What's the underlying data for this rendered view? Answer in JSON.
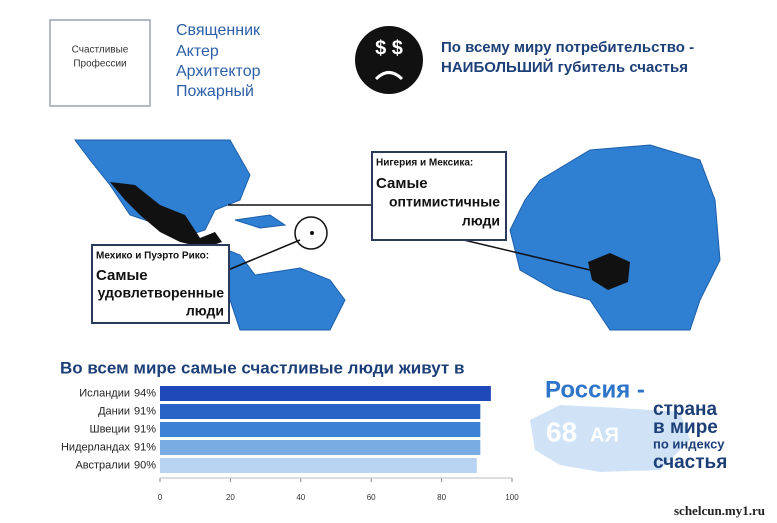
{
  "header": {
    "box_label": [
      "Счастливые",
      "Профессии"
    ],
    "professions": [
      "Священник",
      "Актер",
      "Архитектор",
      "Пожарный"
    ],
    "icon_text": "$ $",
    "consumerism": [
      "По всему миру потребительство -",
      "НАИБОЛЬШИЙ губитель счастья"
    ]
  },
  "map": {
    "callouts": [
      {
        "lead": "Мехико и Пуэрто Рико:",
        "lines": [
          "Самые",
          "удовлетворенные",
          "люди"
        ]
      },
      {
        "lead": "Нигерия и Мексика:",
        "lines": [
          "Самые",
          "оптимистичные",
          "люди"
        ]
      }
    ]
  },
  "chart_data": {
    "type": "hbar",
    "title": "Во всем мире самые счастливые люди живут в",
    "categories": [
      "Исландии",
      "Дании",
      "Швеции",
      "Нидерландах",
      "Австралии"
    ],
    "values": [
      94,
      91,
      91,
      91,
      90
    ],
    "value_labels": [
      "94%",
      "91%",
      "91%",
      "91%",
      "90%"
    ],
    "colors": [
      "#1f48b8",
      "#2a63c6",
      "#3d82d4",
      "#79ace3",
      "#b9d4f2"
    ],
    "xlim": [
      0,
      100
    ],
    "xticks": [
      0,
      20,
      40,
      60,
      80,
      100
    ]
  },
  "russia": {
    "title": "Россия -",
    "rank": "68",
    "suffix": "АЯ",
    "lines": [
      "страна",
      "в мире",
      "по индексу",
      "счастья"
    ]
  },
  "watermark": "schelcun.my1.ru"
}
